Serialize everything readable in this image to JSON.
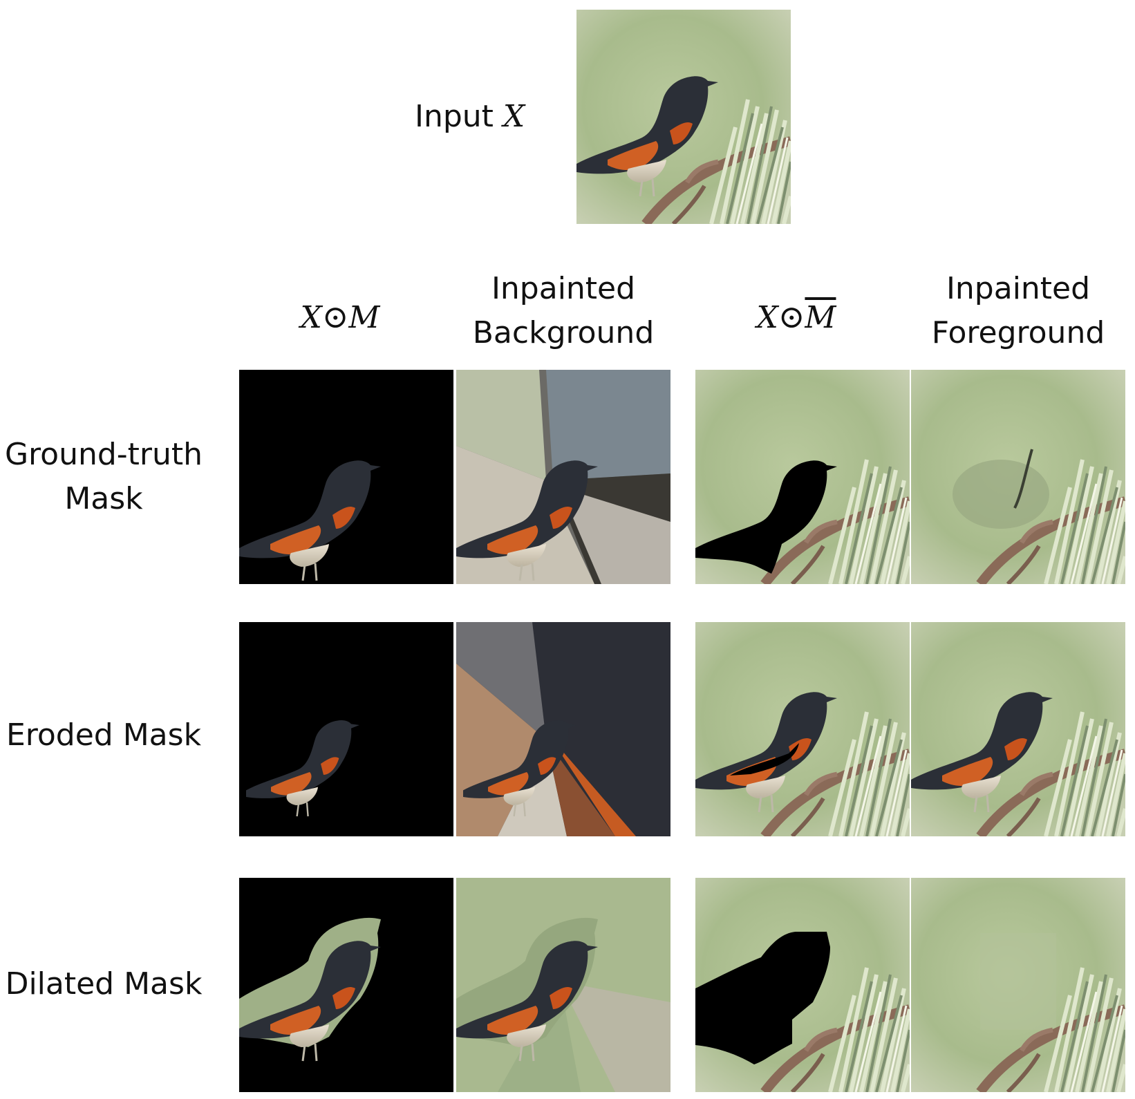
{
  "input": {
    "prefix": "Input ",
    "var": "X"
  },
  "columns": {
    "xm": {
      "x": "X",
      "op": "⊙",
      "m": "M"
    },
    "inpainted_background": {
      "line1": "Inpainted",
      "line2": "Background"
    },
    "xmbar": {
      "x": "X",
      "op": "⊙",
      "m": "M"
    },
    "inpainted_foreground": {
      "line1": "Inpainted",
      "line2": "Foreground"
    }
  },
  "rows": [
    {
      "line1": "Ground-truth",
      "line2": "Mask"
    },
    {
      "line1": "Eroded Mask",
      "line2": ""
    },
    {
      "line1": "Dilated Mask",
      "line2": ""
    }
  ],
  "colors": {
    "background_green": "#a9bd8e",
    "bird_dark": "#2a2d33",
    "bird_orange": "#d0561e"
  }
}
